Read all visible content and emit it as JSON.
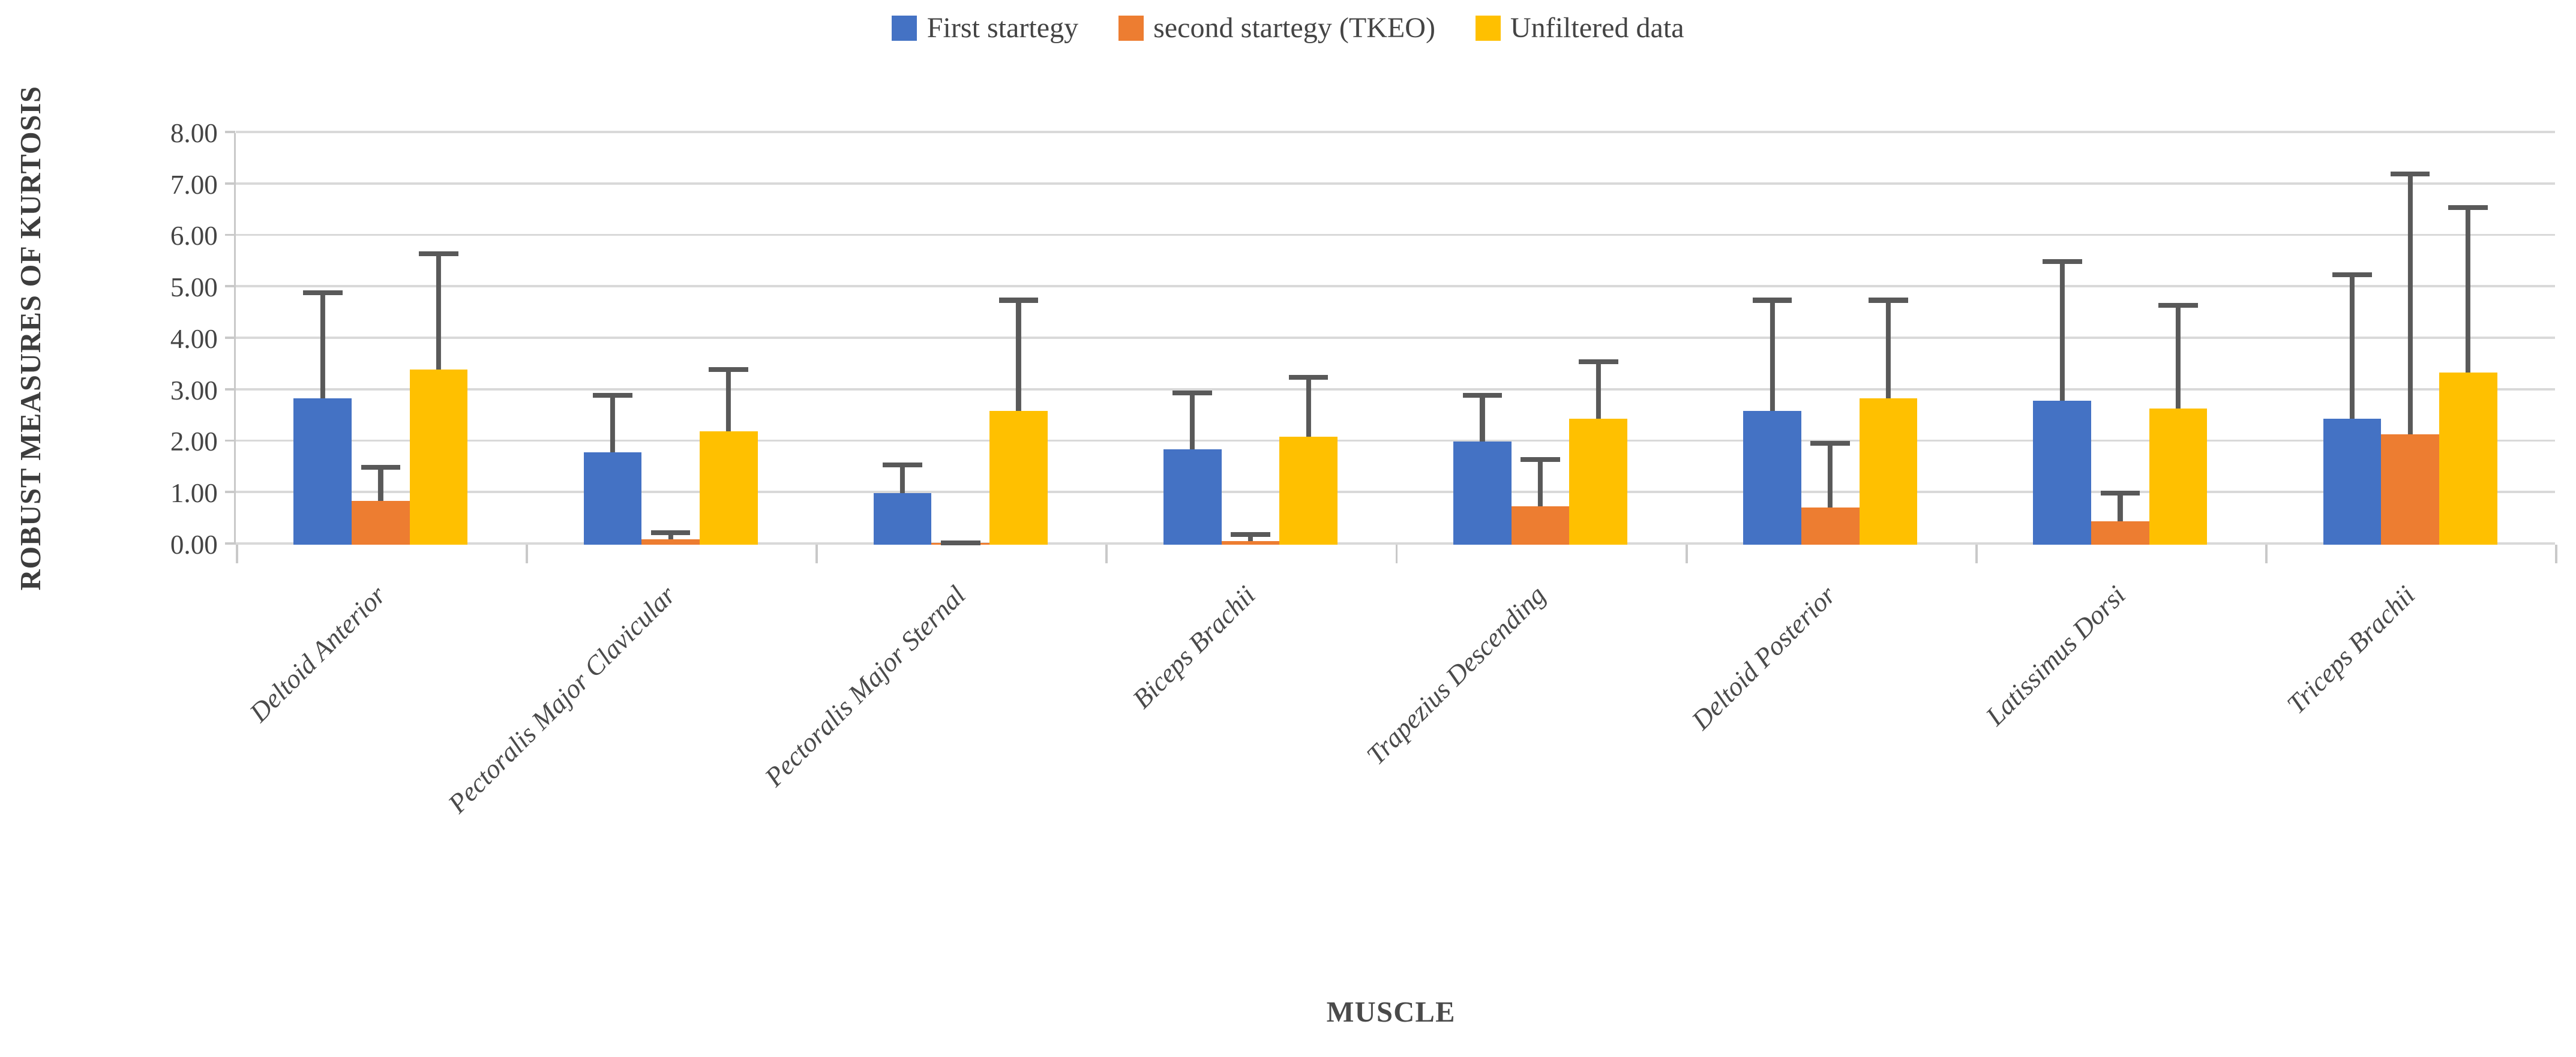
{
  "chart_data": {
    "type": "bar",
    "title": "",
    "xlabel": "MUSCLE",
    "ylabel": "ROBUST MEASURES OF KURTOSIS",
    "ylim": [
      0,
      8
    ],
    "ytick_step": 1,
    "ytick_labels": [
      "0.00",
      "1.00",
      "2.00",
      "3.00",
      "4.00",
      "5.00",
      "6.00",
      "7.00",
      "8.00"
    ],
    "grid": true,
    "legend_position": "top-center",
    "gridline_color": "#d9d9d9",
    "error_bar_color": "#595959",
    "categories": [
      "Deltoid Anterior",
      "Pectoralis Major Clavicular",
      "Pectoralis Major Sternal",
      "Biceps Brachii",
      "Trapezius Descending",
      "Deltoid Posterior",
      "Latissimus Dorsi",
      "Triceps Brachii"
    ],
    "series": [
      {
        "name": "First startegy",
        "color": "#4472C4",
        "values": [
          2.85,
          1.8,
          1.0,
          1.85,
          2.0,
          2.6,
          2.8,
          2.45
        ],
        "error_bar_tops": [
          4.95,
          2.95,
          1.6,
          3.0,
          2.95,
          4.8,
          5.55,
          5.3
        ]
      },
      {
        "name": "second startegy (TKEO)",
        "color": "#ED7D31",
        "values": [
          0.85,
          0.1,
          0.03,
          0.07,
          0.75,
          0.72,
          0.45,
          2.15
        ],
        "error_bar_tops": [
          1.55,
          0.28,
          0.08,
          0.25,
          1.7,
          2.02,
          1.05,
          7.25
        ]
      },
      {
        "name": "Unfiltered data",
        "color": "#FFC000",
        "values": [
          3.4,
          2.2,
          2.6,
          2.1,
          2.45,
          2.85,
          2.65,
          3.35
        ],
        "error_bar_tops": [
          5.7,
          3.45,
          4.8,
          3.3,
          3.6,
          4.8,
          4.7,
          6.6
        ]
      }
    ]
  }
}
